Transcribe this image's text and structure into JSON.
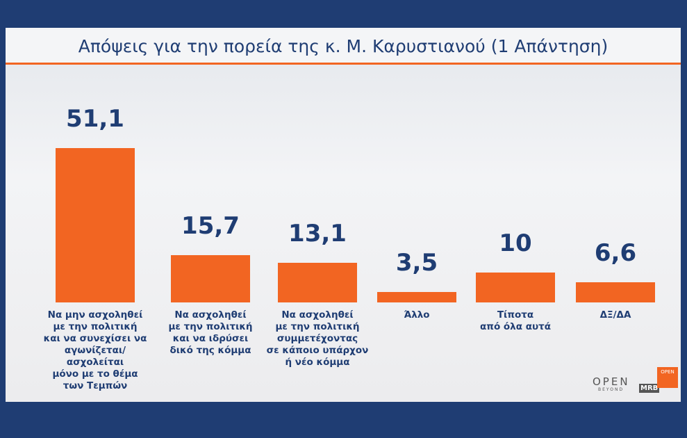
{
  "chart_data": {
    "type": "bar",
    "title": "Απόψεις για την πορεία της κ. Μ. Καρυστιανού (1 Απάντηση)",
    "categories": [
      "Να μην ασχοληθεί\nμε την πολιτική\nκαι να συνεχίσει να\nαγωνίζεται/ασχολείται\nμόνο με το θέμα\nτων Τεμπών",
      "Να ασχοληθεί\nμε την πολιτική\nκαι να ιδρύσει\nδικό της κόμμα",
      "Να ασχοληθεί\nμε την πολιτική\nσυμμετέχοντας\nσε κάποιο υπάρχον\nή νέο κόμμα",
      "Άλλο",
      "Τίποτα\nαπό όλα αυτά",
      "ΔΞ/ΔΑ"
    ],
    "values": [
      51.1,
      15.7,
      13.1,
      3.5,
      10,
      6.6
    ],
    "value_labels": [
      "51,1",
      "15,7",
      "13,1",
      "3,5",
      "10",
      "6,6"
    ],
    "color": "#f26522"
  },
  "logos": {
    "open": "OPEN",
    "beyond": "BEYOND",
    "mrb": "MRB",
    "mrb_open": "OPEN"
  }
}
